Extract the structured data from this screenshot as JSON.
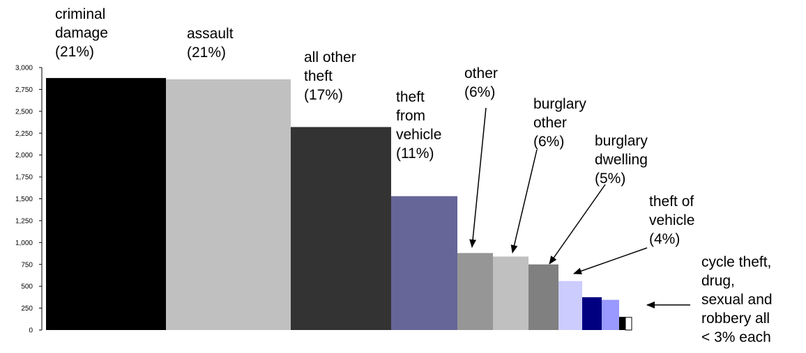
{
  "chart_data": {
    "type": "bar",
    "title": "",
    "xlabel": "",
    "ylabel": "",
    "ylim": [
      0,
      3000
    ],
    "yticks": [
      0,
      250,
      500,
      750,
      1000,
      1250,
      1500,
      1750,
      2000,
      2250,
      2500,
      2750,
      3000
    ],
    "ytick_labels": [
      "0",
      "250",
      "500",
      "750",
      "1,000",
      "1,250",
      "1,500",
      "1,750",
      "2,000",
      "2,250",
      "2,500",
      "2,750",
      "3,000"
    ],
    "grid": false,
    "legend": "none",
    "bars": [
      {
        "value": 2880,
        "color": "#000000",
        "label": [
          "criminal",
          "damage",
          "(21%)"
        ]
      },
      {
        "value": 2865,
        "color": "#c0c0c0",
        "label": [
          "assault",
          "(21%)"
        ]
      },
      {
        "value": 2320,
        "color": "#333333",
        "label": [
          "all other",
          "theft",
          "(17%)"
        ]
      },
      {
        "value": 1530,
        "color": "#666699",
        "label": [
          "theft",
          "from",
          "vehicle",
          "(11%)"
        ]
      },
      {
        "value": 880,
        "color": "#969696",
        "label": [
          "other",
          "(6%)"
        ]
      },
      {
        "value": 840,
        "color": "#c0c0c0",
        "label": [
          "burglary",
          "other",
          "(6%)"
        ]
      },
      {
        "value": 750,
        "color": "#808080",
        "label": [
          "burglary",
          "dwelling",
          "(5%)"
        ]
      },
      {
        "value": 560,
        "color": "#ccccff",
        "label": [
          "theft of",
          "vehicle",
          "(4%)"
        ]
      },
      {
        "value": 375,
        "color": "#000080",
        "label": []
      },
      {
        "value": 345,
        "color": "#9999ff",
        "label": []
      },
      {
        "value": 150,
        "color": "#000000",
        "label": []
      },
      {
        "value": 145,
        "color": "#ffffff",
        "label": []
      }
    ],
    "annotation": [
      "cycle theft,",
      "drug,",
      "sexual and",
      "robbery all",
      "< 3% each"
    ]
  }
}
